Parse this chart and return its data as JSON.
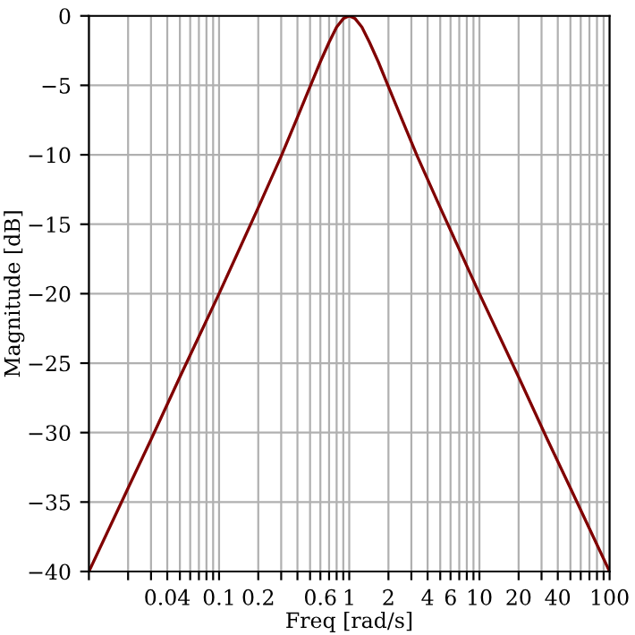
{
  "chart_data": {
    "type": "line",
    "xlabel": "Freq [rad/s]",
    "ylabel": "Magnitude [dB]",
    "x": [
      0.01,
      0.02,
      0.03,
      0.05,
      0.1,
      0.2,
      0.3,
      0.4,
      0.5,
      0.6,
      0.7,
      0.8,
      0.9,
      1,
      1.11,
      1.25,
      1.43,
      1.67,
      2,
      2.5,
      3.33,
      5,
      10,
      20,
      33.3,
      50,
      100
    ],
    "series": [
      {
        "color": "#800000",
        "values": [
          -40.0,
          -34.0,
          -30.5,
          -26.0,
          -20.0,
          -13.8,
          -10.1,
          -7.3,
          -5.1,
          -3.3,
          -1.9,
          -0.8,
          -0.2,
          0,
          -0.2,
          -0.8,
          -1.9,
          -3.3,
          -5.1,
          -7.3,
          -10.1,
          -13.8,
          -20.0,
          -26.0,
          -30.5,
          -34.0,
          -40.0
        ]
      }
    ],
    "log": "x",
    "xlim": [
      0.01,
      100
    ],
    "ylim": [
      -40,
      0
    ],
    "xticks": [
      {
        "value": 0.01,
        "label": null
      },
      {
        "value": 0.02,
        "label": null
      },
      {
        "value": 0.03,
        "label": null
      },
      {
        "value": 0.04,
        "label": "0.04"
      },
      {
        "value": 0.05,
        "label": null
      },
      {
        "value": 0.06,
        "label": null
      },
      {
        "value": 0.07,
        "label": null
      },
      {
        "value": 0.08,
        "label": null
      },
      {
        "value": 0.09,
        "label": null
      },
      {
        "value": 0.1,
        "label": "0.1"
      },
      {
        "value": 0.2,
        "label": "0.2"
      },
      {
        "value": 0.3,
        "label": null
      },
      {
        "value": 0.4,
        "label": null
      },
      {
        "value": 0.5,
        "label": null
      },
      {
        "value": 0.6,
        "label": "0.6"
      },
      {
        "value": 0.7,
        "label": null
      },
      {
        "value": 0.8,
        "label": null
      },
      {
        "value": 0.9,
        "label": null
      },
      {
        "value": 1,
        "label": "1"
      },
      {
        "value": 2,
        "label": "2"
      },
      {
        "value": 3,
        "label": null
      },
      {
        "value": 4,
        "label": "4"
      },
      {
        "value": 5,
        "label": null
      },
      {
        "value": 6,
        "label": "6"
      },
      {
        "value": 7,
        "label": null
      },
      {
        "value": 8,
        "label": null
      },
      {
        "value": 9,
        "label": null
      },
      {
        "value": 10,
        "label": "10"
      },
      {
        "value": 20,
        "label": "20"
      },
      {
        "value": 30,
        "label": null
      },
      {
        "value": 40,
        "label": "40"
      },
      {
        "value": 50,
        "label": null
      },
      {
        "value": 60,
        "label": null
      },
      {
        "value": 70,
        "label": null
      },
      {
        "value": 80,
        "label": null
      },
      {
        "value": 90,
        "label": null
      },
      {
        "value": 100,
        "label": "100"
      }
    ],
    "yticks": [
      {
        "value": 0,
        "label": "0"
      },
      {
        "value": -5,
        "label": "−5"
      },
      {
        "value": -10,
        "label": "−10"
      },
      {
        "value": -15,
        "label": "−15"
      },
      {
        "value": -20,
        "label": "−20"
      },
      {
        "value": -25,
        "label": "−25"
      },
      {
        "value": -30,
        "label": "−30"
      },
      {
        "value": -35,
        "label": "−35"
      },
      {
        "value": -40,
        "label": "−40"
      }
    ],
    "grid": true,
    "legend": false,
    "marker": "none",
    "line_style": "solid"
  }
}
